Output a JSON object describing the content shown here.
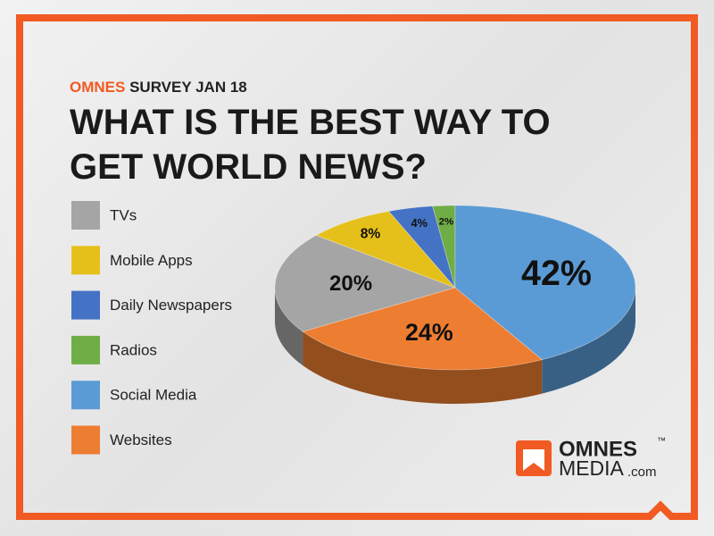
{
  "header": {
    "brand": "OMNES",
    "subtitle": "SURVEY JAN 18",
    "title": "WHAT IS THE BEST WAY TO GET WORLD NEWS?"
  },
  "chart_data": {
    "type": "pie",
    "categories": [
      "TVs",
      "Mobile Apps",
      "Daily Newspapers",
      "Radios",
      "Social Media",
      "Websites"
    ],
    "values": [
      20,
      8,
      4,
      2,
      42,
      24
    ],
    "value_labels": [
      "20%",
      "8%",
      "4%",
      "2%",
      "42%",
      "24%"
    ],
    "colors": [
      "#a5a5a5",
      "#e6c01a",
      "#4472c4",
      "#70ad47",
      "#5b9bd5",
      "#ed7d31"
    ],
    "legend": "left",
    "three_d": true
  },
  "logo": {
    "name": "OMNES",
    "trademark": "™",
    "line2": "MEDIA",
    "suffix": ".com"
  }
}
